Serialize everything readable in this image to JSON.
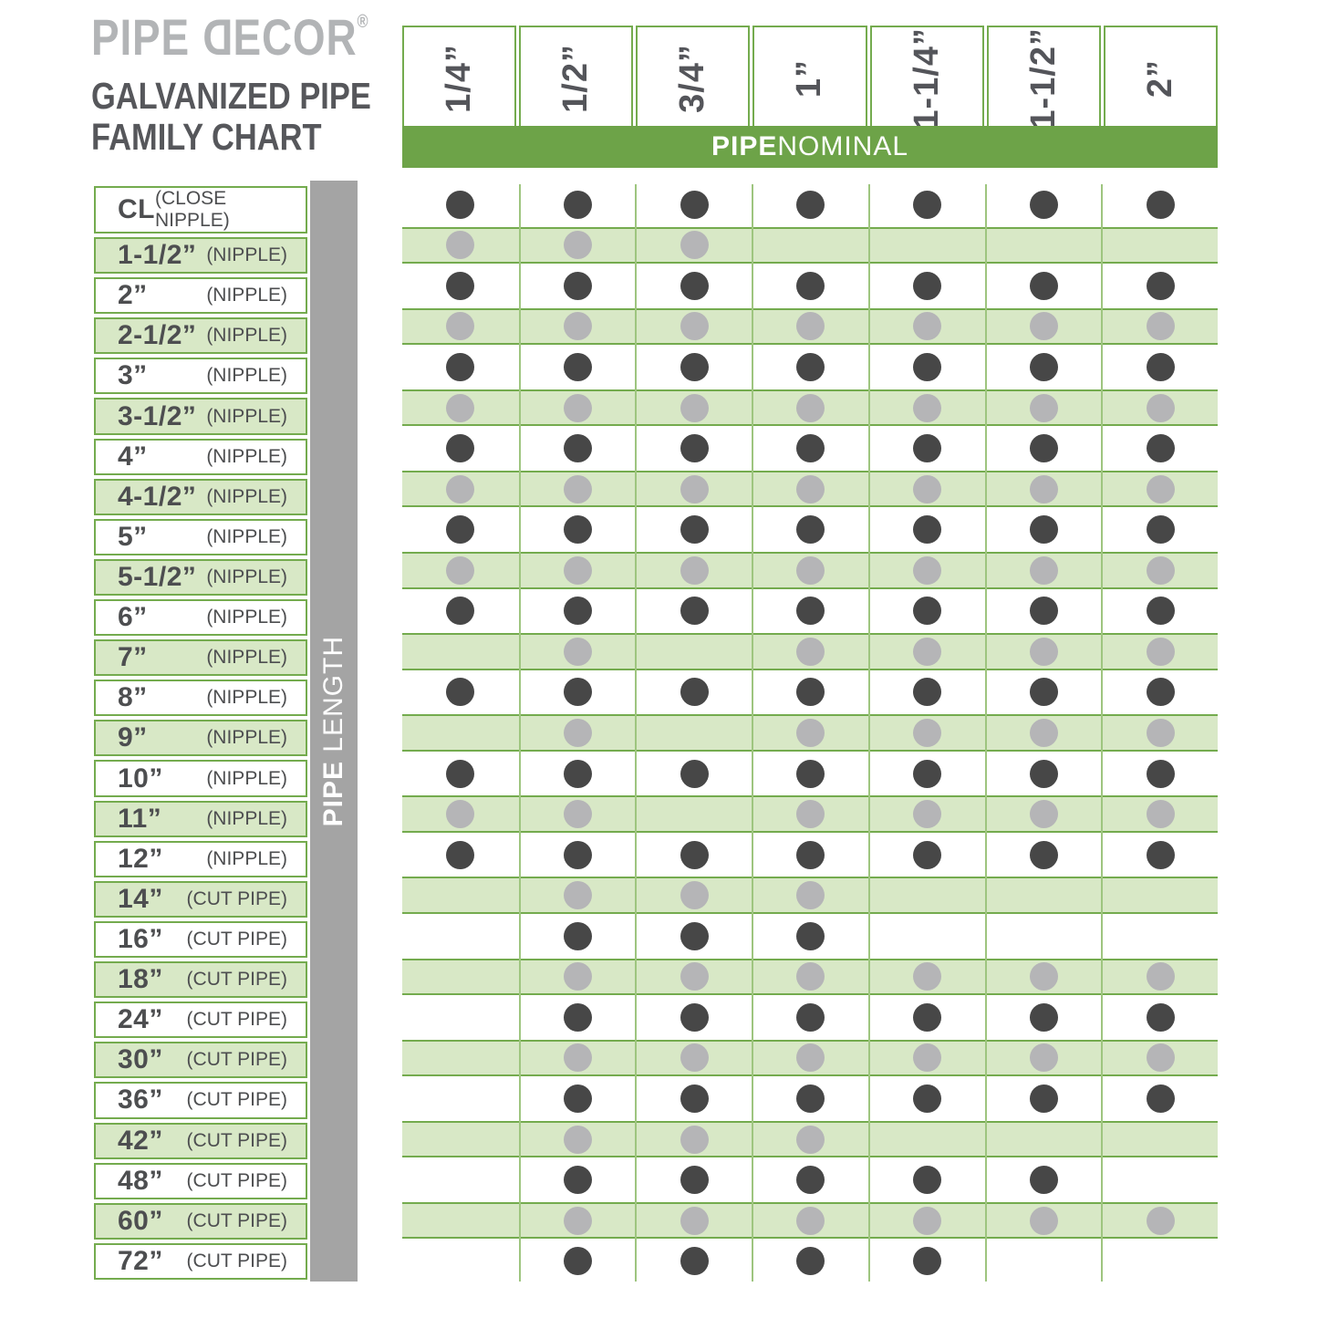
{
  "brand": {
    "logo_pipe": "PIPE",
    "logo_decor_first": "D",
    "logo_decor_rest": "ECOR",
    "registered": "®",
    "title_line1": "GALVANIZED PIPE",
    "title_line2": "FAMILY CHART"
  },
  "chart_data": {
    "type": "table",
    "title": "PIPE DECOR® GALVANIZED PIPE FAMILY CHART",
    "column_axis": {
      "bold": "PIPE",
      "rest": "NOMINAL",
      "full": "PIPE NOMINAL"
    },
    "row_axis": {
      "bold": "PIPE",
      "rest": "LENGTH",
      "full": "PIPE LENGTH"
    },
    "columns": [
      "1/4”",
      "1/2”",
      "3/4”",
      "1”",
      "1-1/4”",
      "1-1/2”",
      "2”"
    ],
    "rows": [
      {
        "size": "CL",
        "kind": "(CLOSE NIPPLE)",
        "available": [
          1,
          1,
          1,
          1,
          1,
          1,
          1
        ]
      },
      {
        "size": "1-1/2”",
        "kind": "(NIPPLE)",
        "available": [
          1,
          1,
          1,
          0,
          0,
          0,
          0
        ]
      },
      {
        "size": "2”",
        "kind": "(NIPPLE)",
        "available": [
          1,
          1,
          1,
          1,
          1,
          1,
          1
        ]
      },
      {
        "size": "2-1/2”",
        "kind": "(NIPPLE)",
        "available": [
          1,
          1,
          1,
          1,
          1,
          1,
          1
        ]
      },
      {
        "size": "3”",
        "kind": "(NIPPLE)",
        "available": [
          1,
          1,
          1,
          1,
          1,
          1,
          1
        ]
      },
      {
        "size": "3-1/2”",
        "kind": "(NIPPLE)",
        "available": [
          1,
          1,
          1,
          1,
          1,
          1,
          1
        ]
      },
      {
        "size": "4”",
        "kind": "(NIPPLE)",
        "available": [
          1,
          1,
          1,
          1,
          1,
          1,
          1
        ]
      },
      {
        "size": "4-1/2”",
        "kind": "(NIPPLE)",
        "available": [
          1,
          1,
          1,
          1,
          1,
          1,
          1
        ]
      },
      {
        "size": "5”",
        "kind": "(NIPPLE)",
        "available": [
          1,
          1,
          1,
          1,
          1,
          1,
          1
        ]
      },
      {
        "size": "5-1/2”",
        "kind": "(NIPPLE)",
        "available": [
          1,
          1,
          1,
          1,
          1,
          1,
          1
        ]
      },
      {
        "size": "6”",
        "kind": "(NIPPLE)",
        "available": [
          1,
          1,
          1,
          1,
          1,
          1,
          1
        ]
      },
      {
        "size": "7”",
        "kind": "(NIPPLE)",
        "available": [
          0,
          1,
          0,
          1,
          1,
          1,
          1
        ]
      },
      {
        "size": "8”",
        "kind": "(NIPPLE)",
        "available": [
          1,
          1,
          1,
          1,
          1,
          1,
          1
        ]
      },
      {
        "size": "9”",
        "kind": "(NIPPLE)",
        "available": [
          0,
          1,
          0,
          1,
          1,
          1,
          1
        ]
      },
      {
        "size": "10”",
        "kind": "(NIPPLE)",
        "available": [
          1,
          1,
          1,
          1,
          1,
          1,
          1
        ]
      },
      {
        "size": "11”",
        "kind": "(NIPPLE)",
        "available": [
          1,
          1,
          0,
          1,
          1,
          1,
          1
        ]
      },
      {
        "size": "12”",
        "kind": "(NIPPLE)",
        "available": [
          1,
          1,
          1,
          1,
          1,
          1,
          1
        ]
      },
      {
        "size": "14”",
        "kind": "(CUT PIPE)",
        "available": [
          0,
          1,
          1,
          1,
          0,
          0,
          0
        ]
      },
      {
        "size": "16”",
        "kind": "(CUT PIPE)",
        "available": [
          0,
          1,
          1,
          1,
          0,
          0,
          0
        ]
      },
      {
        "size": "18”",
        "kind": "(CUT PIPE)",
        "available": [
          0,
          1,
          1,
          1,
          1,
          1,
          1
        ]
      },
      {
        "size": "24”",
        "kind": "(CUT PIPE)",
        "available": [
          0,
          1,
          1,
          1,
          1,
          1,
          1
        ]
      },
      {
        "size": "30”",
        "kind": "(CUT PIPE)",
        "available": [
          0,
          1,
          1,
          1,
          1,
          1,
          1
        ]
      },
      {
        "size": "36”",
        "kind": "(CUT PIPE)",
        "available": [
          0,
          1,
          1,
          1,
          1,
          1,
          1
        ]
      },
      {
        "size": "42”",
        "kind": "(CUT PIPE)",
        "available": [
          0,
          1,
          1,
          1,
          0,
          0,
          0
        ]
      },
      {
        "size": "48”",
        "kind": "(CUT PIPE)",
        "available": [
          0,
          1,
          1,
          1,
          1,
          1,
          0
        ]
      },
      {
        "size": "60”",
        "kind": "(CUT PIPE)",
        "available": [
          0,
          1,
          1,
          1,
          1,
          1,
          1
        ]
      },
      {
        "size": "72”",
        "kind": "(CUT PIPE)",
        "available": [
          0,
          1,
          1,
          1,
          1,
          0,
          0
        ]
      }
    ]
  },
  "colors": {
    "green_bar": "#6DA348",
    "green_border": "#74AB4E",
    "green_grid_line": "#9EC57F",
    "light_green_band": "#D8E8C6",
    "dark_dot": "#474747",
    "gray_dot": "#B5B5B7",
    "gray_bar": "#A4A4A4",
    "label_text": "#4D4E50",
    "title_text": "#56575B",
    "logo_text": "#B2B4B6"
  }
}
